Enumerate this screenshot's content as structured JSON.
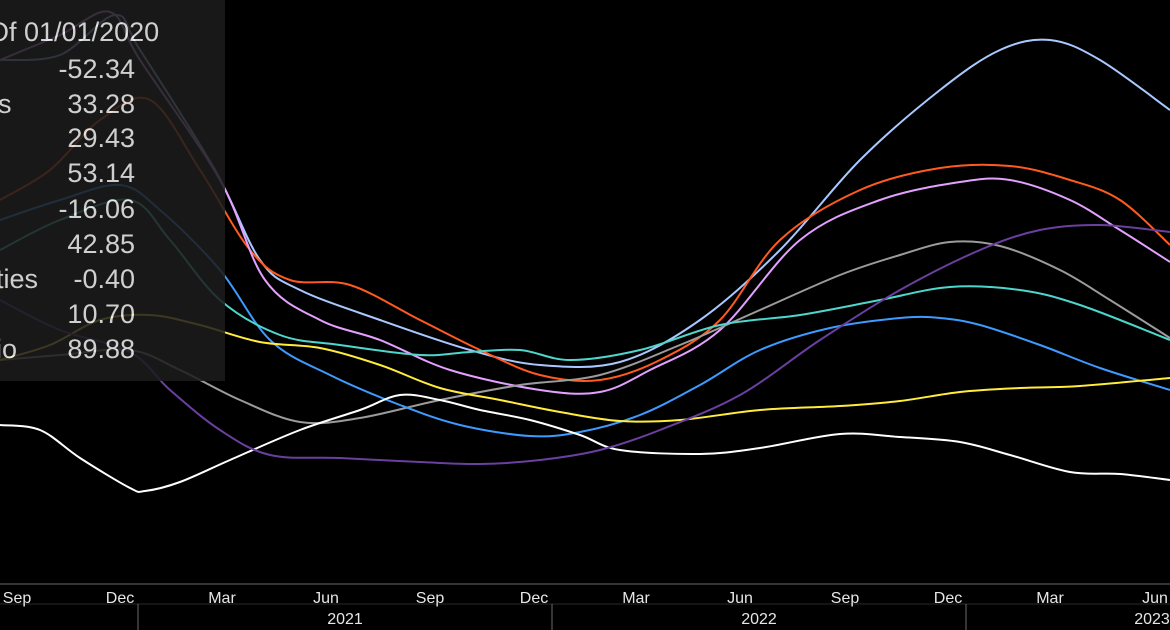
{
  "legend": {
    "title": "Of 01/01/2020",
    "rows": [
      {
        "name": "",
        "value": "-52.34"
      },
      {
        "name": "s",
        "value": "33.28"
      },
      {
        "name": "",
        "value": "29.43"
      },
      {
        "name": "",
        "value": "53.14"
      },
      {
        "name": "",
        "value": "-16.06"
      },
      {
        "name": "",
        "value": "42.85"
      },
      {
        "name": "ties",
        "value": "-0.40"
      },
      {
        "name": "",
        "value": "10.70"
      },
      {
        "name": "io",
        "value": "89.88"
      }
    ]
  },
  "chart_data": {
    "type": "line",
    "title": "",
    "xlabel": "",
    "ylabel": "",
    "x_ticks": [
      "Sep",
      "Dec",
      "Mar",
      "Jun",
      "Sep",
      "Dec",
      "Mar",
      "Jun",
      "Sep",
      "Dec",
      "Mar",
      "Jun"
    ],
    "year_labels": [
      "2021",
      "2022",
      "2023"
    ],
    "x_months": [
      "2020-09",
      "2020-12",
      "2021-03",
      "2021-06",
      "2021-09",
      "2021-12",
      "2022-03",
      "2022-06",
      "2022-09",
      "2022-12",
      "2023-03",
      "2023-06"
    ],
    "ylim": [
      0,
      630
    ],
    "y_inverted": true,
    "grid": false,
    "series": [
      {
        "color": "#a8c8ff",
        "values": [
          [
            0,
            60
          ],
          [
            60,
            55
          ],
          [
            115,
            15
          ],
          [
            140,
            50
          ],
          [
            215,
            170
          ],
          [
            260,
            260
          ],
          [
            300,
            290
          ],
          [
            380,
            320
          ],
          [
            470,
            350
          ],
          [
            540,
            365
          ],
          [
            620,
            362
          ],
          [
            700,
            320
          ],
          [
            780,
            250
          ],
          [
            860,
            160
          ],
          [
            940,
            90
          ],
          [
            1000,
            50
          ],
          [
            1050,
            40
          ],
          [
            1100,
            60
          ],
          [
            1170,
            110
          ]
        ]
      },
      {
        "color": "#ff5a1f",
        "values": [
          [
            0,
            200
          ],
          [
            50,
            170
          ],
          [
            100,
            120
          ],
          [
            150,
            100
          ],
          [
            200,
            170
          ],
          [
            250,
            250
          ],
          [
            290,
            280
          ],
          [
            350,
            285
          ],
          [
            420,
            320
          ],
          [
            480,
            350
          ],
          [
            540,
            375
          ],
          [
            600,
            380
          ],
          [
            660,
            360
          ],
          [
            720,
            320
          ],
          [
            780,
            240
          ],
          [
            860,
            190
          ],
          [
            940,
            168
          ],
          [
            1010,
            166
          ],
          [
            1070,
            180
          ],
          [
            1120,
            200
          ],
          [
            1170,
            245
          ]
        ]
      },
      {
        "color": "#e3a0ff",
        "values": [
          [
            0,
            60
          ],
          [
            60,
            35
          ],
          [
            110,
            12
          ],
          [
            140,
            60
          ],
          [
            220,
            180
          ],
          [
            265,
            280
          ],
          [
            320,
            320
          ],
          [
            380,
            340
          ],
          [
            450,
            370
          ],
          [
            540,
            390
          ],
          [
            600,
            392
          ],
          [
            650,
            370
          ],
          [
            720,
            330
          ],
          [
            800,
            240
          ],
          [
            880,
            200
          ],
          [
            960,
            182
          ],
          [
            1010,
            180
          ],
          [
            1070,
            200
          ],
          [
            1120,
            230
          ],
          [
            1170,
            262
          ]
        ]
      },
      {
        "color": "#9b9b9b",
        "values": [
          [
            0,
            360
          ],
          [
            60,
            355
          ],
          [
            130,
            350
          ],
          [
            180,
            370
          ],
          [
            240,
            400
          ],
          [
            300,
            422
          ],
          [
            360,
            418
          ],
          [
            440,
            400
          ],
          [
            520,
            385
          ],
          [
            600,
            375
          ],
          [
            680,
            345
          ],
          [
            760,
            310
          ],
          [
            840,
            275
          ],
          [
            900,
            255
          ],
          [
            950,
            242
          ],
          [
            1000,
            246
          ],
          [
            1060,
            270
          ],
          [
            1110,
            300
          ],
          [
            1170,
            338
          ]
        ]
      },
      {
        "color": "#3d9bff",
        "values": [
          [
            0,
            220
          ],
          [
            60,
            200
          ],
          [
            120,
            185
          ],
          [
            160,
            210
          ],
          [
            220,
            270
          ],
          [
            270,
            340
          ],
          [
            330,
            375
          ],
          [
            400,
            405
          ],
          [
            460,
            425
          ],
          [
            530,
            436
          ],
          [
            580,
            432
          ],
          [
            640,
            415
          ],
          [
            700,
            385
          ],
          [
            760,
            350
          ],
          [
            830,
            328
          ],
          [
            900,
            318
          ],
          [
            940,
            318
          ],
          [
            980,
            325
          ],
          [
            1040,
            345
          ],
          [
            1100,
            368
          ],
          [
            1170,
            390
          ]
        ]
      },
      {
        "color": "#4fd6cc",
        "values": [
          [
            0,
            250
          ],
          [
            60,
            220
          ],
          [
            130,
            200
          ],
          [
            170,
            240
          ],
          [
            220,
            300
          ],
          [
            280,
            335
          ],
          [
            340,
            345
          ],
          [
            420,
            355
          ],
          [
            470,
            352
          ],
          [
            520,
            350
          ],
          [
            570,
            360
          ],
          [
            640,
            350
          ],
          [
            720,
            325
          ],
          [
            800,
            315
          ],
          [
            880,
            300
          ],
          [
            950,
            287
          ],
          [
            1020,
            290
          ],
          [
            1080,
            305
          ],
          [
            1170,
            340
          ]
        ]
      },
      {
        "color": "#ffec3d",
        "values": [
          [
            0,
            360
          ],
          [
            50,
            345
          ],
          [
            100,
            320
          ],
          [
            150,
            315
          ],
          [
            200,
            325
          ],
          [
            260,
            342
          ],
          [
            320,
            348
          ],
          [
            380,
            365
          ],
          [
            440,
            388
          ],
          [
            500,
            400
          ],
          [
            560,
            412
          ],
          [
            620,
            421
          ],
          [
            680,
            420
          ],
          [
            760,
            410
          ],
          [
            840,
            406
          ],
          [
            900,
            401
          ],
          [
            960,
            392
          ],
          [
            1020,
            388
          ],
          [
            1080,
            386
          ],
          [
            1170,
            378
          ]
        ]
      },
      {
        "color": "#ffffff",
        "values": [
          [
            0,
            425
          ],
          [
            40,
            430
          ],
          [
            80,
            458
          ],
          [
            130,
            488
          ],
          [
            145,
            491
          ],
          [
            180,
            482
          ],
          [
            230,
            460
          ],
          [
            300,
            430
          ],
          [
            360,
            410
          ],
          [
            400,
            395
          ],
          [
            440,
            400
          ],
          [
            480,
            410
          ],
          [
            530,
            420
          ],
          [
            580,
            435
          ],
          [
            620,
            450
          ],
          [
            700,
            454
          ],
          [
            760,
            448
          ],
          [
            840,
            434
          ],
          [
            900,
            437
          ],
          [
            960,
            442
          ],
          [
            1010,
            455
          ],
          [
            1070,
            472
          ],
          [
            1120,
            474
          ],
          [
            1170,
            480
          ]
        ]
      },
      {
        "color": "#6a3fa0",
        "values": [
          [
            0,
            300
          ],
          [
            60,
            330
          ],
          [
            130,
            352
          ],
          [
            170,
            390
          ],
          [
            220,
            430
          ],
          [
            270,
            455
          ],
          [
            340,
            458
          ],
          [
            420,
            462
          ],
          [
            480,
            464
          ],
          [
            540,
            460
          ],
          [
            600,
            450
          ],
          [
            660,
            430
          ],
          [
            740,
            395
          ],
          [
            820,
            340
          ],
          [
            900,
            290
          ],
          [
            980,
            250
          ],
          [
            1040,
            230
          ],
          [
            1100,
            225
          ],
          [
            1170,
            232
          ]
        ]
      }
    ]
  }
}
